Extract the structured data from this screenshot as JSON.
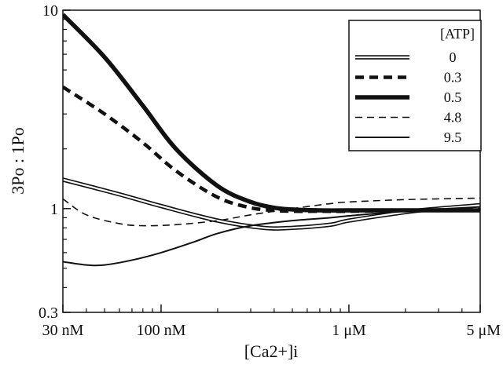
{
  "chart_data": {
    "type": "line",
    "title": "",
    "xlabel": "[Ca2+]i",
    "ylabel": "3Po : 1Po",
    "x_scale": "log",
    "y_scale": "log",
    "xlim_nM": [
      30,
      5000
    ],
    "ylim": [
      0.3,
      10
    ],
    "grid": false,
    "legend": {
      "title": "[ATP]",
      "position": "top-right"
    },
    "x_ticks": [
      {
        "value_nM": 30,
        "label": "30 nM"
      },
      {
        "value_nM": 100,
        "label": "100 nM"
      },
      {
        "value_nM": 1000,
        "label": "1 μM"
      },
      {
        "value_nM": 5000,
        "label": "5 μM"
      }
    ],
    "y_ticks": [
      {
        "value": 10,
        "label": "10"
      },
      {
        "value": 1,
        "label": "1"
      },
      {
        "value": 0.3,
        "label": "0.3"
      }
    ],
    "series": [
      {
        "name": "0",
        "style": "double",
        "x_nM": [
          30,
          60,
          100,
          200,
          350,
          500,
          800,
          1000,
          2000,
          3000,
          5000
        ],
        "y": [
          1.4,
          1.18,
          1.03,
          0.87,
          0.8,
          0.8,
          0.83,
          0.87,
          0.96,
          1.0,
          1.04
        ]
      },
      {
        "name": "0.3",
        "style": "thick-dashed",
        "x_nM": [
          30,
          50,
          80,
          120,
          200,
          300,
          400,
          500,
          700,
          1000,
          2000,
          5000
        ],
        "y": [
          4.1,
          3.0,
          2.15,
          1.55,
          1.14,
          1.01,
          0.98,
          0.97,
          0.97,
          0.97,
          0.98,
          0.99
        ]
      },
      {
        "name": "0.5",
        "style": "thick-solid",
        "x_nM": [
          30,
          50,
          80,
          120,
          200,
          300,
          400,
          500,
          700,
          1000,
          2000,
          5000
        ],
        "y": [
          9.5,
          5.8,
          3.3,
          2.0,
          1.3,
          1.08,
          1.01,
          0.99,
          0.98,
          0.98,
          0.98,
          0.98
        ]
      },
      {
        "name": "4.8",
        "style": "thin-dashed",
        "x_nM": [
          30,
          40,
          60,
          80,
          120,
          200,
          300,
          500,
          800,
          1000,
          2000,
          5000
        ],
        "y": [
          1.12,
          0.93,
          0.84,
          0.82,
          0.83,
          0.87,
          0.93,
          1.0,
          1.06,
          1.08,
          1.11,
          1.13
        ]
      },
      {
        "name": "9.5",
        "style": "thin-solid",
        "x_nM": [
          30,
          40,
          50,
          70,
          100,
          150,
          200,
          300,
          500,
          800,
          1000,
          2000,
          5000
        ],
        "y": [
          0.54,
          0.52,
          0.52,
          0.55,
          0.6,
          0.68,
          0.75,
          0.82,
          0.87,
          0.9,
          0.92,
          0.97,
          1.02
        ]
      }
    ]
  }
}
